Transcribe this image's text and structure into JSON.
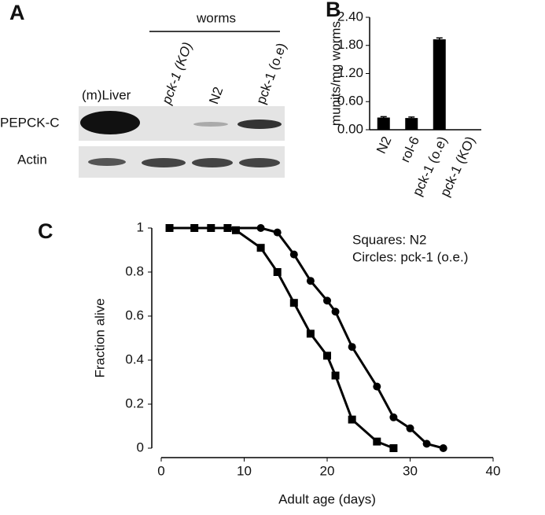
{
  "panel_labels": [
    "A",
    "B",
    "C"
  ],
  "blot": {
    "header": "worms",
    "lanes": [
      "(m)Liver",
      "pck-1 (KO)",
      "N2",
      "pck-1 (o.e)"
    ],
    "rows": [
      "PEPCK-C",
      "Actin"
    ]
  },
  "chart_data": [
    {
      "type": "bar",
      "ylabel": "munits/mg worms",
      "categories": [
        "N2",
        "rol-6",
        "pck-1 (o.e)",
        "pck-1 (KO)"
      ],
      "values": [
        0.26,
        0.25,
        1.93,
        0
      ],
      "errors": [
        0.02,
        0.02,
        0.03,
        null
      ],
      "color": "#000000",
      "ylim": [
        0,
        2.4
      ],
      "yticks": [
        {
          "value": 0,
          "label": "0.00"
        },
        {
          "value": 0.6,
          "label": "0.60"
        },
        {
          "value": 1.2,
          "label": "1.20"
        },
        {
          "value": 1.8,
          "label": "1.80"
        },
        {
          "value": 2.4,
          "label": "2.40"
        }
      ]
    },
    {
      "type": "line",
      "xlabel": "Adult age (days)",
      "ylabel": "Fraction alive",
      "annotations": [
        "Squares: N2",
        "Circles: pck-1 (o.e.)"
      ],
      "series": [
        {
          "name": "N2",
          "marker": "square",
          "color": "#000000",
          "x": [
            1,
            4,
            6,
            8,
            9,
            12,
            14,
            16,
            18,
            20,
            21,
            23,
            26,
            28
          ],
          "values": [
            1,
            1,
            1,
            1,
            0.99,
            0.91,
            0.8,
            0.66,
            0.52,
            0.42,
            0.33,
            0.13,
            0.03,
            0
          ]
        },
        {
          "name": "pck-1 (o.e.)",
          "marker": "circle",
          "color": "#000000",
          "x": [
            8,
            12,
            14,
            16,
            18,
            20,
            21,
            23,
            26,
            28,
            30,
            32,
            34
          ],
          "values": [
            1,
            1,
            0.98,
            0.88,
            0.76,
            0.67,
            0.62,
            0.46,
            0.28,
            0.14,
            0.09,
            0.02,
            0
          ]
        }
      ],
      "xlim": [
        0,
        40
      ],
      "xticks": [
        0,
        10,
        20,
        30,
        40
      ],
      "ylim": [
        0,
        1
      ],
      "yticks": [
        0,
        0.2,
        0.4,
        0.6,
        0.8,
        1
      ]
    }
  ]
}
